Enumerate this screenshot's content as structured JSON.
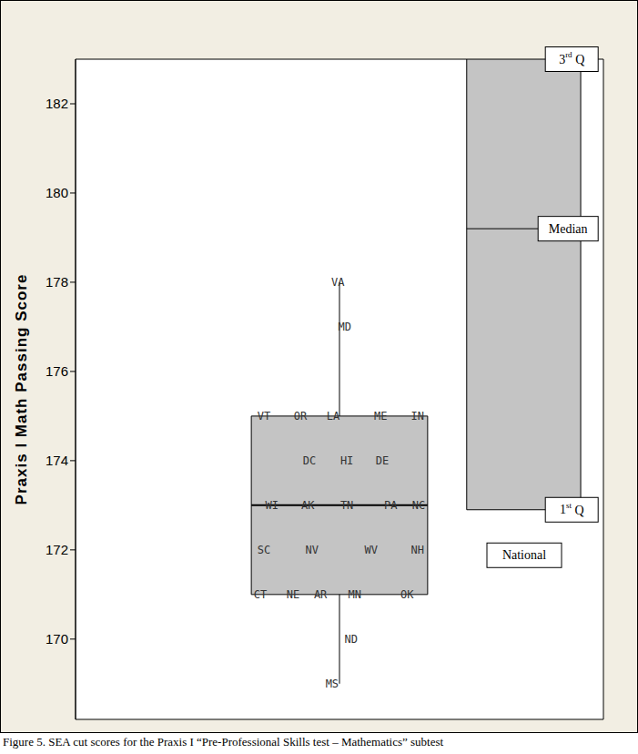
{
  "chart_data": {
    "type": "box",
    "y_label": "Praxis I Math Passing Score",
    "ylim": [
      168.2,
      183
    ],
    "yticks": [
      170,
      172,
      174,
      176,
      178,
      180,
      182
    ],
    "xlim": [
      0,
      100
    ],
    "tick_labels": "y",
    "grid": false,
    "points": {
      "labels": [
        "VT",
        "OR",
        "LA",
        "ME",
        "IN",
        "DC",
        "HI",
        "DE",
        "WI",
        "AK",
        "TN",
        "PA",
        "NC",
        "SC",
        "NV",
        "WV",
        "NH",
        "CT",
        "NE",
        "AR",
        "MN",
        "OK",
        "ND",
        "MS",
        "MD",
        "VA"
      ],
      "x": [
        35.7,
        42.6,
        48.8,
        57.8,
        64.8,
        44.3,
        51.4,
        58.1,
        37.2,
        44.0,
        51.4,
        59.7,
        65.0,
        35.7,
        44.8,
        56.0,
        64.8,
        35.0,
        41.2,
        46.4,
        52.9,
        62.8,
        52.2,
        48.6,
        51.0,
        49.7
      ],
      "values": [
        175,
        175,
        175,
        175,
        175,
        174,
        174,
        174,
        173,
        173,
        173,
        173,
        173,
        172,
        172,
        172,
        172,
        171,
        171,
        171,
        171,
        171,
        170,
        169,
        177,
        178
      ]
    },
    "boxes": [
      {
        "q1": 171,
        "median": 173,
        "q3": 175,
        "whisker_low": 169,
        "whisker_high": 178
      },
      {
        "name": "National",
        "q1": 172.9,
        "median": 179.2,
        "q3": 183,
        "quartile_labels": {
          "q1": "1st Q",
          "median": "Median",
          "q3": "3rd Q"
        }
      }
    ],
    "caption": "Figure 5. SEA cut scores for the Praxis I “Pre-Professional Skills test – Mathematics” subtest"
  }
}
